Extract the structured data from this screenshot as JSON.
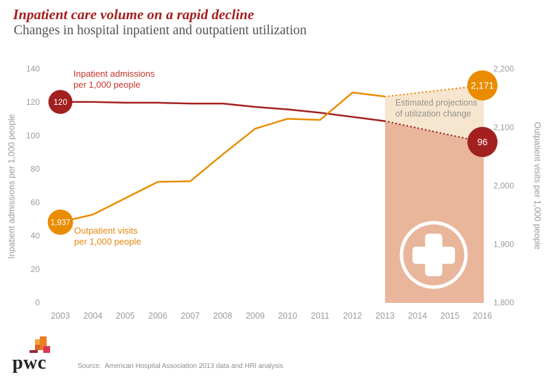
{
  "header": {
    "title": "Inpatient care volume on a rapid decline",
    "subtitle": "Changes in hospital inpatient and outpatient utilization"
  },
  "annotations": {
    "inpatient_label": "Inpatient admissions\nper 1,000 people",
    "outpatient_label": "Outpatient visits\nper 1,000 people",
    "projection_note": "Estimated projections\nof utilization change"
  },
  "footer": {
    "logo_text": "pwc",
    "source": "Source:  American Hospital Association 2013 data and HRI analysis"
  },
  "colors": {
    "brand_red": "#a32020",
    "label_red": "#c5352b",
    "brand_orange": "#ea8c00",
    "label_orange": "#e8860d",
    "axis_gray": "#9b9b9b",
    "band_light": "#f6e6cf",
    "band_dark": "#e9b69c",
    "title_red": "#a32020"
  },
  "chart_data": {
    "type": "line",
    "title": "Inpatient care volume on a rapid decline",
    "subtitle": "Changes in hospital inpatient and outpatient utilization",
    "x": [
      2003,
      2004,
      2005,
      2006,
      2007,
      2008,
      2009,
      2010,
      2011,
      2012,
      2013,
      2014,
      2015,
      2016
    ],
    "x_labels": [
      "2003",
      "2004",
      "2005",
      "2006",
      "2007",
      "2008",
      "2009",
      "2010",
      "2011",
      "2012",
      "2013",
      "2014",
      "2015",
      "2016"
    ],
    "grid": false,
    "series": [
      {
        "name": "Inpatient admissions per 1,000 people",
        "axis": "left",
        "color": "#a32020",
        "values": [
          120,
          120,
          119.5,
          119.5,
          119,
          119,
          117,
          115.5,
          113.5,
          111,
          108.5
        ],
        "start_label": "120",
        "projection": {
          "year": 2016,
          "value": 96,
          "label": "96",
          "style": "dotted"
        }
      },
      {
        "name": "Outpatient visits per 1,000 people",
        "axis": "right",
        "color": "#ea8c00",
        "values": [
          1937,
          1950,
          1978,
          2006,
          2007,
          2053,
          2097,
          2114,
          2112,
          2159,
          2152
        ],
        "start_label": "1,937",
        "projection": {
          "year": 2016,
          "value": 2171,
          "label": "2,171",
          "style": "dotted"
        }
      }
    ],
    "left_axis": {
      "label": "Inpatient admissions per 1,000 people",
      "range": [
        0,
        140
      ],
      "ticks": [
        {
          "value": 140,
          "label": "140"
        },
        {
          "value": 120,
          "label": "120"
        },
        {
          "value": 100,
          "label": "100"
        },
        {
          "value": 80,
          "label": "80"
        },
        {
          "value": 60,
          "label": "60"
        },
        {
          "value": 40,
          "label": "40"
        },
        {
          "value": 20,
          "label": "20"
        },
        {
          "value": 0,
          "label": "0"
        }
      ]
    },
    "right_axis": {
      "label": "Outpatient visits per 1,000 people",
      "range": [
        1800,
        2200
      ],
      "ticks": [
        {
          "value": 2200,
          "label": "2,200"
        },
        {
          "value": 2100,
          "label": "2,100"
        },
        {
          "value": 2000,
          "label": "2,000"
        },
        {
          "value": 1900,
          "label": "1,900"
        },
        {
          "value": 1800,
          "label": "1,800"
        }
      ]
    },
    "projection_band": {
      "start_year": 2013,
      "end_year": 2016,
      "light_color": "#f6e6cf",
      "dark_color": "#e9b69c",
      "note": "Estimated projections of utilization change"
    }
  }
}
